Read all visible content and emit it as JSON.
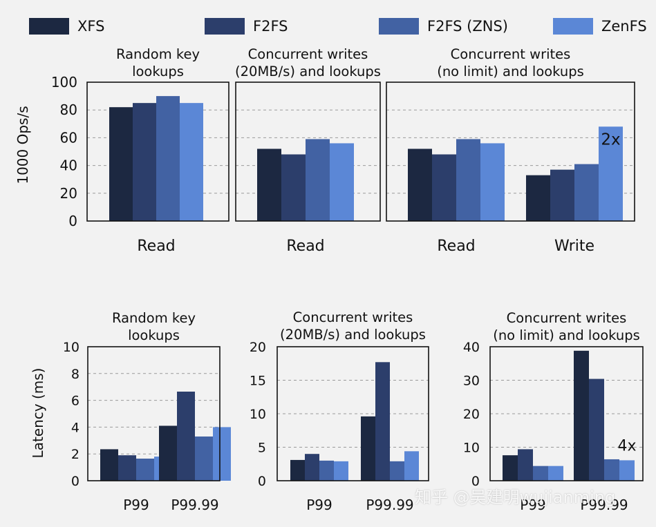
{
  "legend": [
    {
      "label": "XFS",
      "color": "#1c2841"
    },
    {
      "label": "F2FS",
      "color": "#2c3e6b"
    },
    {
      "label": "F2FS (ZNS)",
      "color": "#4262a3"
    },
    {
      "label": "ZenFS",
      "color": "#5b87d6"
    }
  ],
  "watermark": "知乎 @吴建明wujianming",
  "chart_data": [
    {
      "type": "bar",
      "title": "Random key\nlookups",
      "ylabel": "1000 Ops/s",
      "ylim": [
        0,
        100
      ],
      "yticks": [
        0,
        20,
        40,
        60,
        80,
        100
      ],
      "categories": [
        "Read"
      ],
      "series": [
        {
          "name": "XFS",
          "values": [
            82
          ]
        },
        {
          "name": "F2FS",
          "values": [
            85
          ]
        },
        {
          "name": "F2FS (ZNS)",
          "values": [
            90
          ]
        },
        {
          "name": "ZenFS",
          "values": [
            85
          ]
        }
      ],
      "annotations": []
    },
    {
      "type": "bar",
      "title": "Concurrent writes\n(20MB/s) and lookups",
      "ylabel": "",
      "ylim": [
        0,
        100
      ],
      "yticks": [],
      "categories": [
        "Read"
      ],
      "series": [
        {
          "name": "XFS",
          "values": [
            52
          ]
        },
        {
          "name": "F2FS",
          "values": [
            48
          ]
        },
        {
          "name": "F2FS (ZNS)",
          "values": [
            59
          ]
        },
        {
          "name": "ZenFS",
          "values": [
            56
          ]
        }
      ],
      "annotations": []
    },
    {
      "type": "bar",
      "title": "Concurrent writes\n(no limit) and lookups",
      "ylabel": "",
      "ylim": [
        0,
        100
      ],
      "yticks": [],
      "categories": [
        "Read",
        "Write"
      ],
      "series": [
        {
          "name": "XFS",
          "values": [
            52,
            33
          ]
        },
        {
          "name": "F2FS",
          "values": [
            48,
            37
          ]
        },
        {
          "name": "F2FS (ZNS)",
          "values": [
            59,
            41
          ]
        },
        {
          "name": "ZenFS",
          "values": [
            56,
            68
          ]
        }
      ],
      "annotations": [
        {
          "text": "2x",
          "category": "Write",
          "series": "ZenFS"
        }
      ]
    },
    {
      "type": "bar",
      "title": "Random key\nlookups",
      "ylabel": "Latency (ms)",
      "ylim": [
        0,
        10
      ],
      "yticks": [
        0,
        2,
        4,
        6,
        8,
        10
      ],
      "categories": [
        "P99",
        "P99.99"
      ],
      "series": [
        {
          "name": "XFS",
          "values": [
            2.35,
            4.1
          ]
        },
        {
          "name": "F2FS",
          "values": [
            1.9,
            6.65
          ]
        },
        {
          "name": "F2FS (ZNS)",
          "values": [
            1.65,
            3.3
          ]
        },
        {
          "name": "ZenFS",
          "values": [
            1.8,
            4.0
          ]
        }
      ],
      "annotations": []
    },
    {
      "type": "bar",
      "title": "Concurrent writes\n(20MB/s) and lookups",
      "ylabel": "",
      "ylim": [
        0,
        20
      ],
      "yticks": [
        0,
        5,
        10,
        15,
        20
      ],
      "categories": [
        "P99",
        "P99.99"
      ],
      "series": [
        {
          "name": "XFS",
          "values": [
            3.1,
            9.6
          ]
        },
        {
          "name": "F2FS",
          "values": [
            4.0,
            17.7
          ]
        },
        {
          "name": "F2FS (ZNS)",
          "values": [
            3.0,
            2.9
          ]
        },
        {
          "name": "ZenFS",
          "values": [
            2.9,
            4.4
          ]
        }
      ],
      "annotations": []
    },
    {
      "type": "bar",
      "title": "Concurrent writes\n(no limit) and lookups",
      "ylabel": "",
      "ylim": [
        0,
        40
      ],
      "yticks": [
        0,
        10,
        20,
        30,
        40
      ],
      "categories": [
        "P99",
        "P99.99"
      ],
      "series": [
        {
          "name": "XFS",
          "values": [
            7.6,
            38.8
          ]
        },
        {
          "name": "F2FS",
          "values": [
            9.4,
            30.4
          ]
        },
        {
          "name": "F2FS (ZNS)",
          "values": [
            4.4,
            6.4
          ]
        },
        {
          "name": "ZenFS",
          "values": [
            4.4,
            6.1
          ]
        }
      ],
      "annotations": [
        {
          "text": "4x",
          "category": "P99.99",
          "series": "ZenFS"
        }
      ]
    }
  ]
}
